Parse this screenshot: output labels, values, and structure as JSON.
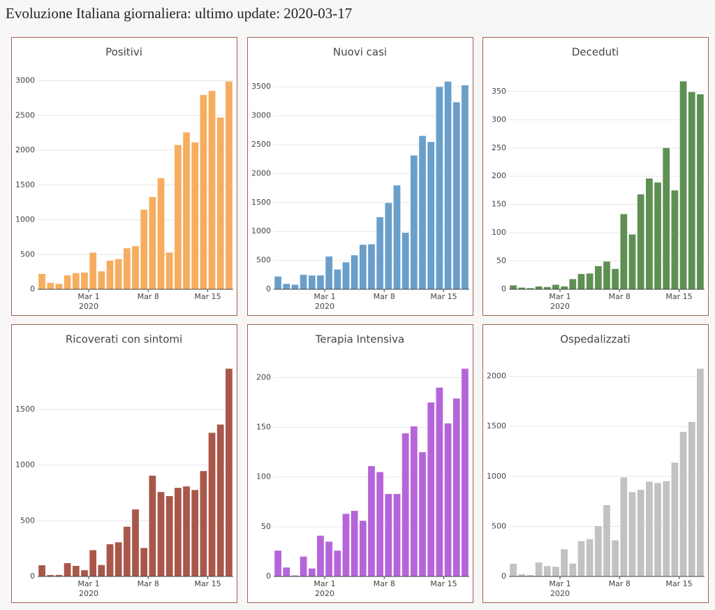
{
  "title": "Evoluzione Italiana giornaliera: ultimo update: 2020-03-17",
  "chart_data": [
    {
      "type": "bar",
      "title": "Positivi",
      "color": "#f7ad5f",
      "x": [
        "2020-02-24",
        "2020-02-25",
        "2020-02-26",
        "2020-02-27",
        "2020-02-28",
        "2020-02-29",
        "2020-03-01",
        "2020-03-02",
        "2020-03-03",
        "2020-03-04",
        "2020-03-05",
        "2020-03-06",
        "2020-03-07",
        "2020-03-08",
        "2020-03-09",
        "2020-03-10",
        "2020-03-11",
        "2020-03-12",
        "2020-03-13",
        "2020-03-14",
        "2020-03-15",
        "2020-03-16",
        "2020-03-17"
      ],
      "values": [
        221,
        93,
        78,
        200,
        233,
        240,
        528,
        258,
        412,
        434,
        591,
        621,
        1145,
        1326,
        1598,
        529,
        2076,
        2256,
        2112,
        2795,
        2853,
        2470,
        2989
      ],
      "ylim": [
        0,
        3146
      ],
      "yticks": [
        0,
        500,
        1000,
        1500,
        2000,
        2500,
        3000
      ],
      "xticks": [
        {
          "value": "2020-03-01",
          "label": "Mar 1",
          "sublabel": "2020"
        },
        {
          "value": "2020-03-08",
          "label": "Mar 8"
        },
        {
          "value": "2020-03-15",
          "label": "Mar 15"
        }
      ],
      "grid": true
    },
    {
      "type": "bar",
      "title": "Nuovi casi",
      "color": "#6a9fca",
      "x": [
        "2020-02-24",
        "2020-02-25",
        "2020-02-26",
        "2020-02-27",
        "2020-02-28",
        "2020-02-29",
        "2020-03-01",
        "2020-03-02",
        "2020-03-03",
        "2020-03-04",
        "2020-03-05",
        "2020-03-06",
        "2020-03-07",
        "2020-03-08",
        "2020-03-09",
        "2020-03-10",
        "2020-03-11",
        "2020-03-12",
        "2020-03-13",
        "2020-03-14",
        "2020-03-15",
        "2020-03-16",
        "2020-03-17"
      ],
      "values": [
        221,
        93,
        78,
        250,
        238,
        240,
        566,
        342,
        466,
        587,
        769,
        778,
        1247,
        1492,
        1797,
        977,
        2313,
        2651,
        2547,
        3497,
        3590,
        3233,
        3526
      ],
      "ylim": [
        0,
        3780
      ],
      "yticks": [
        0,
        500,
        1000,
        1500,
        2000,
        2500,
        3000,
        3500
      ],
      "xticks": [
        {
          "value": "2020-03-01",
          "label": "Mar 1",
          "sublabel": "2020"
        },
        {
          "value": "2020-03-08",
          "label": "Mar 8"
        },
        {
          "value": "2020-03-15",
          "label": "Mar 15"
        }
      ],
      "grid": true
    },
    {
      "type": "bar",
      "title": "Deceduti",
      "color": "#5e8f53",
      "x": [
        "2020-02-24",
        "2020-02-25",
        "2020-02-26",
        "2020-02-27",
        "2020-02-28",
        "2020-02-29",
        "2020-03-01",
        "2020-03-02",
        "2020-03-03",
        "2020-03-04",
        "2020-03-05",
        "2020-03-06",
        "2020-03-07",
        "2020-03-08",
        "2020-03-09",
        "2020-03-10",
        "2020-03-11",
        "2020-03-12",
        "2020-03-13",
        "2020-03-14",
        "2020-03-15",
        "2020-03-16",
        "2020-03-17"
      ],
      "values": [
        7,
        3,
        2,
        5,
        4,
        8,
        5,
        18,
        27,
        28,
        41,
        49,
        36,
        133,
        97,
        168,
        196,
        189,
        250,
        175,
        368,
        349,
        345
      ],
      "ylim": [
        0,
        387
      ],
      "yticks": [
        0,
        50,
        100,
        150,
        200,
        250,
        300,
        350
      ],
      "xticks": [
        {
          "value": "2020-03-01",
          "label": "Mar 1",
          "sublabel": "2020"
        },
        {
          "value": "2020-03-08",
          "label": "Mar 8"
        },
        {
          "value": "2020-03-15",
          "label": "Mar 15"
        }
      ],
      "grid": true
    },
    {
      "type": "bar",
      "title": "Ricoverati con sintomi",
      "color": "#a8574a",
      "x": [
        "2020-02-24",
        "2020-02-25",
        "2020-02-26",
        "2020-02-27",
        "2020-02-28",
        "2020-02-29",
        "2020-03-01",
        "2020-03-02",
        "2020-03-03",
        "2020-03-04",
        "2020-03-05",
        "2020-03-06",
        "2020-03-07",
        "2020-03-08",
        "2020-03-09",
        "2020-03-10",
        "2020-03-11",
        "2020-03-12",
        "2020-03-13",
        "2020-03-14",
        "2020-03-15",
        "2020-03-16",
        "2020-03-17"
      ],
      "values": [
        101,
        13,
        14,
        120,
        95,
        56,
        236,
        103,
        290,
        307,
        447,
        602,
        256,
        906,
        759,
        722,
        796,
        809,
        777,
        947,
        1291,
        1365,
        1867
      ],
      "ylim": [
        0,
        1965
      ],
      "yticks": [
        0,
        500,
        1000,
        1500
      ],
      "xticks": [
        {
          "value": "2020-03-01",
          "label": "Mar 1",
          "sublabel": "2020"
        },
        {
          "value": "2020-03-08",
          "label": "Mar 8"
        },
        {
          "value": "2020-03-15",
          "label": "Mar 15"
        }
      ],
      "grid": true
    },
    {
      "type": "bar",
      "title": "Terapia Intensiva",
      "color": "#b565d9",
      "x": [
        "2020-02-24",
        "2020-02-25",
        "2020-02-26",
        "2020-02-27",
        "2020-02-28",
        "2020-02-29",
        "2020-03-01",
        "2020-03-02",
        "2020-03-03",
        "2020-03-04",
        "2020-03-05",
        "2020-03-06",
        "2020-03-07",
        "2020-03-08",
        "2020-03-09",
        "2020-03-10",
        "2020-03-11",
        "2020-03-12",
        "2020-03-13",
        "2020-03-14",
        "2020-03-15",
        "2020-03-16",
        "2020-03-17"
      ],
      "values": [
        26,
        9,
        1,
        20,
        8,
        41,
        35,
        26,
        63,
        66,
        56,
        111,
        105,
        83,
        83,
        144,
        151,
        125,
        175,
        190,
        154,
        179,
        209
      ],
      "ylim": [
        0,
        220
      ],
      "yticks": [
        0,
        50,
        100,
        150,
        200
      ],
      "xticks": [
        {
          "value": "2020-03-01",
          "label": "Mar 1",
          "sublabel": "2020"
        },
        {
          "value": "2020-03-08",
          "label": "Mar 8"
        },
        {
          "value": "2020-03-15",
          "label": "Mar 15"
        }
      ],
      "grid": true
    },
    {
      "type": "bar",
      "title": "Ospedalizzati",
      "color": "#c2c2c2",
      "x": [
        "2020-02-24",
        "2020-02-25",
        "2020-02-26",
        "2020-02-27",
        "2020-02-28",
        "2020-02-29",
        "2020-03-01",
        "2020-03-02",
        "2020-03-03",
        "2020-03-04",
        "2020-03-05",
        "2020-03-06",
        "2020-03-07",
        "2020-03-08",
        "2020-03-09",
        "2020-03-10",
        "2020-03-11",
        "2020-03-12",
        "2020-03-13",
        "2020-03-14",
        "2020-03-15",
        "2020-03-16",
        "2020-03-17"
      ],
      "values": [
        127,
        22,
        15,
        140,
        103,
        97,
        271,
        129,
        353,
        373,
        503,
        713,
        361,
        989,
        842,
        866,
        947,
        934,
        952,
        1137,
        1445,
        1544,
        2076
      ],
      "ylim": [
        0,
        2185
      ],
      "yticks": [
        0,
        500,
        1000,
        1500,
        2000
      ],
      "xticks": [
        {
          "value": "2020-03-01",
          "label": "Mar 1",
          "sublabel": "2020"
        },
        {
          "value": "2020-03-08",
          "label": "Mar 8"
        },
        {
          "value": "2020-03-15",
          "label": "Mar 15"
        }
      ],
      "grid": true
    }
  ]
}
